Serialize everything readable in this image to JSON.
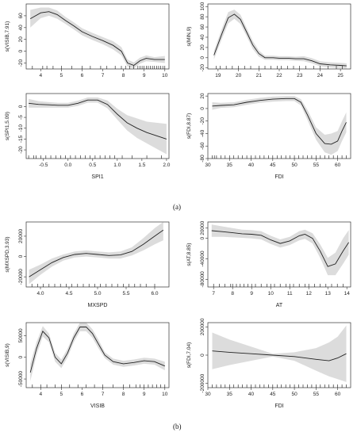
{
  "captions": [
    "(a)",
    "(b)"
  ],
  "chart_data": [
    {
      "type": "line",
      "panel": "a1",
      "ylabel": "s(VISIB,7.91)",
      "xlabel": "",
      "xlim": [
        3.3,
        10.2
      ],
      "ylim": [
        -30,
        80
      ],
      "xticks": [
        4,
        5,
        6,
        7,
        8,
        9,
        10
      ],
      "yticks": [
        -20,
        0,
        20,
        40,
        60
      ],
      "x": [
        3.5,
        4.0,
        4.4,
        4.8,
        5.2,
        5.6,
        6.0,
        6.5,
        7.0,
        7.5,
        7.9,
        8.2,
        8.5,
        8.8,
        9.1,
        9.5,
        10.0
      ],
      "y": [
        55,
        65,
        67,
        62,
        52,
        43,
        33,
        25,
        18,
        10,
        0,
        -20,
        -24,
        -16,
        -12,
        -14,
        -14
      ],
      "lower": [
        40,
        56,
        60,
        55,
        46,
        37,
        27,
        19,
        12,
        3,
        -7,
        -26,
        -29,
        -21,
        -17,
        -18,
        -20
      ],
      "upper": [
        70,
        74,
        74,
        69,
        58,
        49,
        39,
        31,
        24,
        17,
        7,
        -14,
        -19,
        -11,
        -7,
        -10,
        -8
      ],
      "rug": [
        3.6,
        4.1,
        4.3,
        4.6,
        5.0,
        5.5,
        6.0,
        6.4,
        6.9,
        7.2,
        7.6,
        7.9,
        8.1,
        8.3,
        8.5,
        8.7,
        8.8,
        8.9,
        9.0,
        9.1,
        9.2,
        9.3,
        9.4,
        9.5,
        9.6,
        9.7,
        9.8,
        9.9,
        10.0
      ]
    },
    {
      "type": "line",
      "panel": "a2",
      "ylabel": "s(MIN,9)",
      "xlabel": "",
      "xlim": [
        18.5,
        25.5
      ],
      "ylim": [
        -22,
        105
      ],
      "xticks": [
        19,
        20,
        21,
        22,
        23,
        24,
        25
      ],
      "yticks": [
        -20,
        0,
        20,
        40,
        60,
        80,
        100
      ],
      "x": [
        18.8,
        19.2,
        19.5,
        19.8,
        20.1,
        20.4,
        20.7,
        21.0,
        21.3,
        21.7,
        22.0,
        22.4,
        22.8,
        23.2,
        23.6,
        24.0,
        24.5,
        25.0,
        25.3
      ],
      "y": [
        5,
        48,
        78,
        85,
        75,
        50,
        25,
        8,
        0,
        0,
        -1,
        -1,
        -2,
        -2,
        -6,
        -12,
        -14,
        -15,
        -16
      ],
      "lower": [
        -3,
        38,
        67,
        76,
        66,
        42,
        17,
        2,
        -4,
        -4,
        -5,
        -5,
        -6,
        -7,
        -11,
        -17,
        -19,
        -20,
        -21
      ],
      "upper": [
        13,
        58,
        89,
        94,
        84,
        58,
        33,
        14,
        4,
        4,
        3,
        3,
        2,
        3,
        -1,
        -7,
        -9,
        -10,
        -11
      ],
      "rug": [
        18.9,
        19.1,
        19.4,
        19.7,
        20.0,
        20.3,
        20.6,
        21.0,
        21.3,
        21.6,
        21.9,
        22.1,
        22.4,
        22.7,
        23.0,
        23.3,
        23.7,
        24.0,
        24.4,
        24.8,
        25.1
      ]
    },
    {
      "type": "line",
      "panel": "a3",
      "ylabel": "s(SPI1,5.09)",
      "xlabel": "SPI1",
      "xlim": [
        -0.85,
        2.05
      ],
      "ylim": [
        -24,
        6
      ],
      "xticks": [
        -0.5,
        0.0,
        0.5,
        1.0,
        1.5,
        2.0
      ],
      "xtick_labels": [
        "-0.5",
        "0.0",
        "0.5",
        "1.0",
        "1.5",
        "2.0"
      ],
      "yticks": [
        -20,
        -15,
        -10,
        -5,
        0
      ],
      "x": [
        -0.8,
        -0.6,
        -0.4,
        -0.2,
        0.0,
        0.2,
        0.4,
        0.6,
        0.8,
        1.0,
        1.2,
        1.4,
        1.6,
        1.8,
        2.0
      ],
      "y": [
        1.5,
        1.0,
        0.8,
        0.6,
        0.6,
        1.5,
        3.0,
        3.0,
        1.0,
        -3.5,
        -7.5,
        -10,
        -12,
        -13.5,
        -15
      ],
      "lower": [
        -0.5,
        -0.5,
        -0.5,
        -0.5,
        -0.5,
        0.3,
        1.8,
        1.8,
        -0.8,
        -6,
        -11,
        -14.5,
        -17,
        -19.5,
        -22
      ],
      "upper": [
        3.5,
        2.5,
        2.1,
        1.7,
        1.7,
        2.7,
        4.2,
        4.2,
        2.8,
        -1,
        -4,
        -5.5,
        -7,
        -7.5,
        -8
      ],
      "rug": [
        -0.8,
        -0.7,
        -0.65,
        -0.55,
        -0.45,
        -0.35,
        -0.25,
        -0.15,
        -0.05,
        0.05,
        0.15,
        0.25,
        0.35,
        0.45,
        0.55,
        0.65,
        0.75,
        0.85,
        0.95,
        1.1,
        1.3,
        1.6,
        1.9
      ]
    },
    {
      "type": "line",
      "panel": "a4",
      "ylabel": "s(FDI,8.87)",
      "xlabel": "FDI",
      "xlim": [
        30,
        63
      ],
      "ylim": [
        -80,
        24
      ],
      "xticks": [
        30,
        35,
        40,
        45,
        50,
        55,
        60
      ],
      "yticks": [
        -80,
        -60,
        -40,
        -20,
        0,
        20
      ],
      "x": [
        31,
        33,
        36,
        39,
        42,
        45,
        48,
        50,
        51.5,
        53,
        55,
        57,
        58.5,
        60,
        61,
        62
      ],
      "y": [
        4,
        5,
        6,
        10,
        13,
        15,
        16,
        16,
        10,
        -10,
        -40,
        -56,
        -57,
        -52,
        -36,
        -22
      ],
      "lower": [
        -2,
        1,
        2,
        6,
        9,
        11,
        12,
        12,
        5,
        -18,
        -50,
        -70,
        -74,
        -68,
        -52,
        -38
      ],
      "upper": [
        10,
        9,
        10,
        14,
        17,
        19,
        20,
        20,
        15,
        -2,
        -30,
        -42,
        -40,
        -36,
        -20,
        -6
      ],
      "rug": [
        31,
        31.5,
        32,
        33,
        34,
        35,
        36,
        37,
        38,
        39,
        40,
        41,
        42,
        43,
        44,
        45,
        46,
        47,
        48,
        49,
        50,
        51,
        52,
        53,
        54,
        55,
        56,
        57,
        58,
        59,
        60,
        61,
        62
      ]
    },
    {
      "type": "line",
      "panel": "b1",
      "ylabel": "s(MXSPD,3.93)",
      "xlabel": "MXSPD",
      "xlim": [
        3.75,
        6.25
      ],
      "ylim": [
        -30000,
        34000
      ],
      "xticks": [
        4.0,
        4.5,
        5.0,
        5.5,
        6.0
      ],
      "xtick_labels": [
        "4.0",
        "4.5",
        "5.0",
        "5.5",
        "6.0"
      ],
      "yticks": [
        -20000,
        0,
        20000
      ],
      "x": [
        3.8,
        4.0,
        4.2,
        4.4,
        4.6,
        4.8,
        5.0,
        5.2,
        5.4,
        5.6,
        5.8,
        6.0,
        6.15
      ],
      "y": [
        -20000,
        -13000,
        -6000,
        -1000,
        2000,
        3000,
        2000,
        1000,
        1500,
        5000,
        12000,
        20000,
        26000
      ],
      "lower": [
        -27000,
        -18000,
        -10000,
        -4000,
        -1000,
        0,
        -1000,
        -2000,
        -2000,
        1000,
        6000,
        12000,
        16000
      ],
      "upper": [
        -13000,
        -8000,
        -2000,
        2000,
        5000,
        6000,
        5000,
        4000,
        5000,
        9000,
        18000,
        28000,
        34000
      ],
      "rug": [
        3.85,
        3.95,
        4.05,
        4.15,
        4.25,
        4.35,
        4.45,
        4.55,
        4.65,
        4.75,
        4.85,
        4.95,
        5.05,
        5.15,
        5.25,
        5.35,
        5.45,
        5.55,
        5.65,
        5.75,
        5.85,
        6.0
      ]
    },
    {
      "type": "line",
      "panel": "b2",
      "ylabel": "s(AT,8.85)",
      "xlabel": "AT",
      "xlim": [
        6.7,
        14.2
      ],
      "ylim": [
        -95000,
        32000
      ],
      "xticks": [
        7,
        8,
        9,
        10,
        11,
        12,
        13,
        14
      ],
      "yticks": [
        -80000,
        -40000,
        0,
        20000
      ],
      "x": [
        6.9,
        7.5,
        8.0,
        8.5,
        9.0,
        9.5,
        10.0,
        10.5,
        11.0,
        11.5,
        11.8,
        12.2,
        12.6,
        13.0,
        13.4,
        13.8,
        14.1
      ],
      "y": [
        15000,
        13000,
        11000,
        9000,
        8000,
        6000,
        -3000,
        -10000,
        -5000,
        5000,
        8000,
        0,
        -25000,
        -55000,
        -50000,
        -25000,
        -8000
      ],
      "lower": [
        3000,
        3000,
        2000,
        1000,
        0,
        -2000,
        -11000,
        -18000,
        -13000,
        -4000,
        -1000,
        -10000,
        -38000,
        -72000,
        -72000,
        -50000,
        -32000
      ],
      "upper": [
        27000,
        23000,
        20000,
        17000,
        16000,
        14000,
        5000,
        -2000,
        3000,
        14000,
        17000,
        10000,
        -12000,
        -38000,
        -28000,
        0,
        16000
      ],
      "rug": [
        7.0,
        7.3,
        7.6,
        7.9,
        8.0,
        8.2,
        8.4,
        8.6,
        8.8,
        9.0,
        9.2,
        9.5,
        9.8,
        10.0,
        10.2,
        10.5,
        10.8,
        11.0,
        11.2,
        11.5,
        11.8,
        12.0,
        12.3,
        12.6,
        12.9,
        13.2,
        13.5,
        13.8
      ]
    },
    {
      "type": "line",
      "panel": "b3",
      "ylabel": "s(VISIB,9)",
      "xlabel": "VISIB",
      "xlim": [
        3.3,
        10.2
      ],
      "ylim": [
        -70000,
        80000
      ],
      "xticks": [
        4,
        5,
        6,
        7,
        8,
        9,
        10
      ],
      "yticks": [
        -50000,
        0,
        50000
      ],
      "x": [
        3.5,
        3.8,
        4.1,
        4.4,
        4.7,
        5.0,
        5.3,
        5.6,
        5.9,
        6.2,
        6.5,
        6.8,
        7.1,
        7.5,
        8.0,
        8.5,
        9.0,
        9.5,
        10.0
      ],
      "y": [
        -35000,
        20000,
        60000,
        45000,
        0,
        -15000,
        10000,
        45000,
        70000,
        70000,
        55000,
        30000,
        5000,
        -10000,
        -15000,
        -12000,
        -8000,
        -10000,
        -20000
      ],
      "lower": [
        -55000,
        5000,
        48000,
        35000,
        -10000,
        -25000,
        0,
        35000,
        60000,
        60000,
        45000,
        20000,
        -2000,
        -17000,
        -22000,
        -19000,
        -15000,
        -17000,
        -30000
      ],
      "upper": [
        -15000,
        35000,
        72000,
        55000,
        10000,
        -5000,
        20000,
        55000,
        80000,
        80000,
        65000,
        40000,
        12000,
        -3000,
        -8000,
        -5000,
        -1000,
        -3000,
        -10000
      ],
      "rug": [
        3.6,
        4.0,
        4.3,
        4.7,
        5.0,
        5.4,
        5.8,
        6.2,
        6.6,
        7.0,
        7.5,
        8.0,
        8.3,
        8.6,
        8.8,
        9.0,
        9.2,
        9.4,
        9.6,
        9.8,
        10.0
      ]
    },
    {
      "type": "line",
      "panel": "b4",
      "ylabel": "s(FDI,7.04)",
      "xlabel": "FDI",
      "xlim": [
        30,
        63
      ],
      "ylim": [
        -230000,
        230000
      ],
      "xticks": [
        30,
        35,
        40,
        45,
        50,
        55,
        60
      ],
      "yticks": [
        -200000,
        0,
        200000
      ],
      "x": [
        31,
        35,
        40,
        45,
        50,
        55,
        58,
        60,
        62
      ],
      "y": [
        30000,
        20000,
        10000,
        0,
        -10000,
        -30000,
        -40000,
        -20000,
        10000
      ],
      "lower": [
        -100000,
        -70000,
        -40000,
        -10000,
        -40000,
        -110000,
        -150000,
        -170000,
        -190000
      ],
      "upper": [
        160000,
        110000,
        60000,
        10000,
        20000,
        50000,
        90000,
        130000,
        210000
      ],
      "rug": [
        31,
        32,
        33,
        34,
        35,
        36,
        37,
        38,
        39,
        40,
        41,
        42,
        43,
        44,
        45,
        46,
        47,
        48,
        49,
        50,
        51,
        52,
        53,
        54,
        55,
        56,
        57,
        58,
        59,
        60,
        61,
        62
      ]
    }
  ]
}
